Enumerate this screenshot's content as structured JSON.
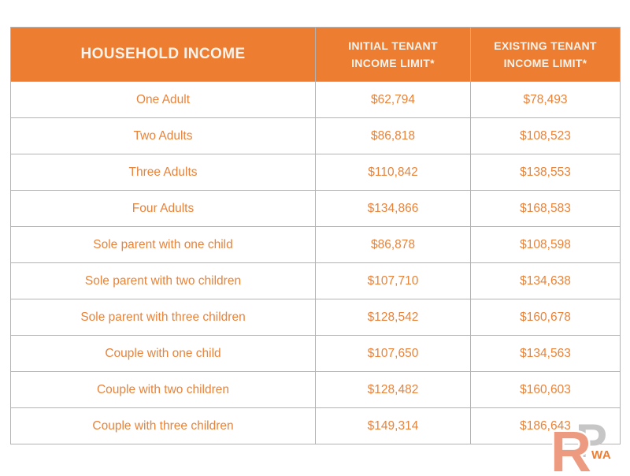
{
  "colors": {
    "header_bg": "#ed7d31",
    "header_text": "#faf3ec",
    "header_divider": "#b5672a",
    "cell_text": "#e8833a",
    "border": "#b3b3b3",
    "logo_r": "#ec9b80",
    "logo_p": "#c6c6c6",
    "logo_wa": "#ed7d31"
  },
  "table": {
    "header": {
      "col1": "HOUSEHOLD INCOME",
      "col2_line1": "INITIAL TENANT",
      "col2_line2": "INCOME LIMIT*",
      "col3_line1": "EXISTING TENANT",
      "col3_line2": "INCOME LIMIT*"
    },
    "rows": [
      {
        "household": "One Adult",
        "initial_limit": "$62,794",
        "existing_limit": "$78,493"
      },
      {
        "household": "Two Adults",
        "initial_limit": "$86,818",
        "existing_limit": "$108,523"
      },
      {
        "household": "Three Adults",
        "initial_limit": "$110,842",
        "existing_limit": "$138,553"
      },
      {
        "household": "Four Adults",
        "initial_limit": "$134,866",
        "existing_limit": "$168,583"
      },
      {
        "household": "Sole parent with one child",
        "initial_limit": "$86,878",
        "existing_limit": "$108,598"
      },
      {
        "household": "Sole parent with two children",
        "initial_limit": "$107,710",
        "existing_limit": "$134,638"
      },
      {
        "household": "Sole parent with three children",
        "initial_limit": "$128,542",
        "existing_limit": "$160,678"
      },
      {
        "household": "Couple with one child",
        "initial_limit": "$107,650",
        "existing_limit": "$134,563"
      },
      {
        "household": "Couple with two children",
        "initial_limit": "$128,482",
        "existing_limit": "$160,603"
      },
      {
        "household": "Couple with three children",
        "initial_limit": "$149,314",
        "existing_limit": "$186,643"
      }
    ]
  },
  "watermark": {
    "letter_r": "R",
    "letter_p": "P",
    "suffix": "WA"
  },
  "chart_data": {
    "type": "table",
    "columns": [
      "HOUSEHOLD INCOME",
      "INITIAL TENANT INCOME LIMIT*",
      "EXISTING TENANT INCOME LIMIT*"
    ],
    "rows": [
      [
        "One Adult",
        62794,
        78493
      ],
      [
        "Two Adults",
        86818,
        108523
      ],
      [
        "Three Adults",
        110842,
        138553
      ],
      [
        "Four Adults",
        134866,
        168583
      ],
      [
        "Sole parent with one child",
        86878,
        108598
      ],
      [
        "Sole parent with two children",
        107710,
        134638
      ],
      [
        "Sole parent with three children",
        128542,
        160678
      ],
      [
        "Couple with one child",
        107650,
        134563
      ],
      [
        "Couple with two children",
        128482,
        160603
      ],
      [
        "Couple with three children",
        149314,
        186643
      ]
    ],
    "layout_hints": {
      "header_fill": "#ed7d31",
      "text_color": "#e8833a",
      "grid": true,
      "column_alignment": [
        "center",
        "center",
        "center"
      ]
    }
  }
}
